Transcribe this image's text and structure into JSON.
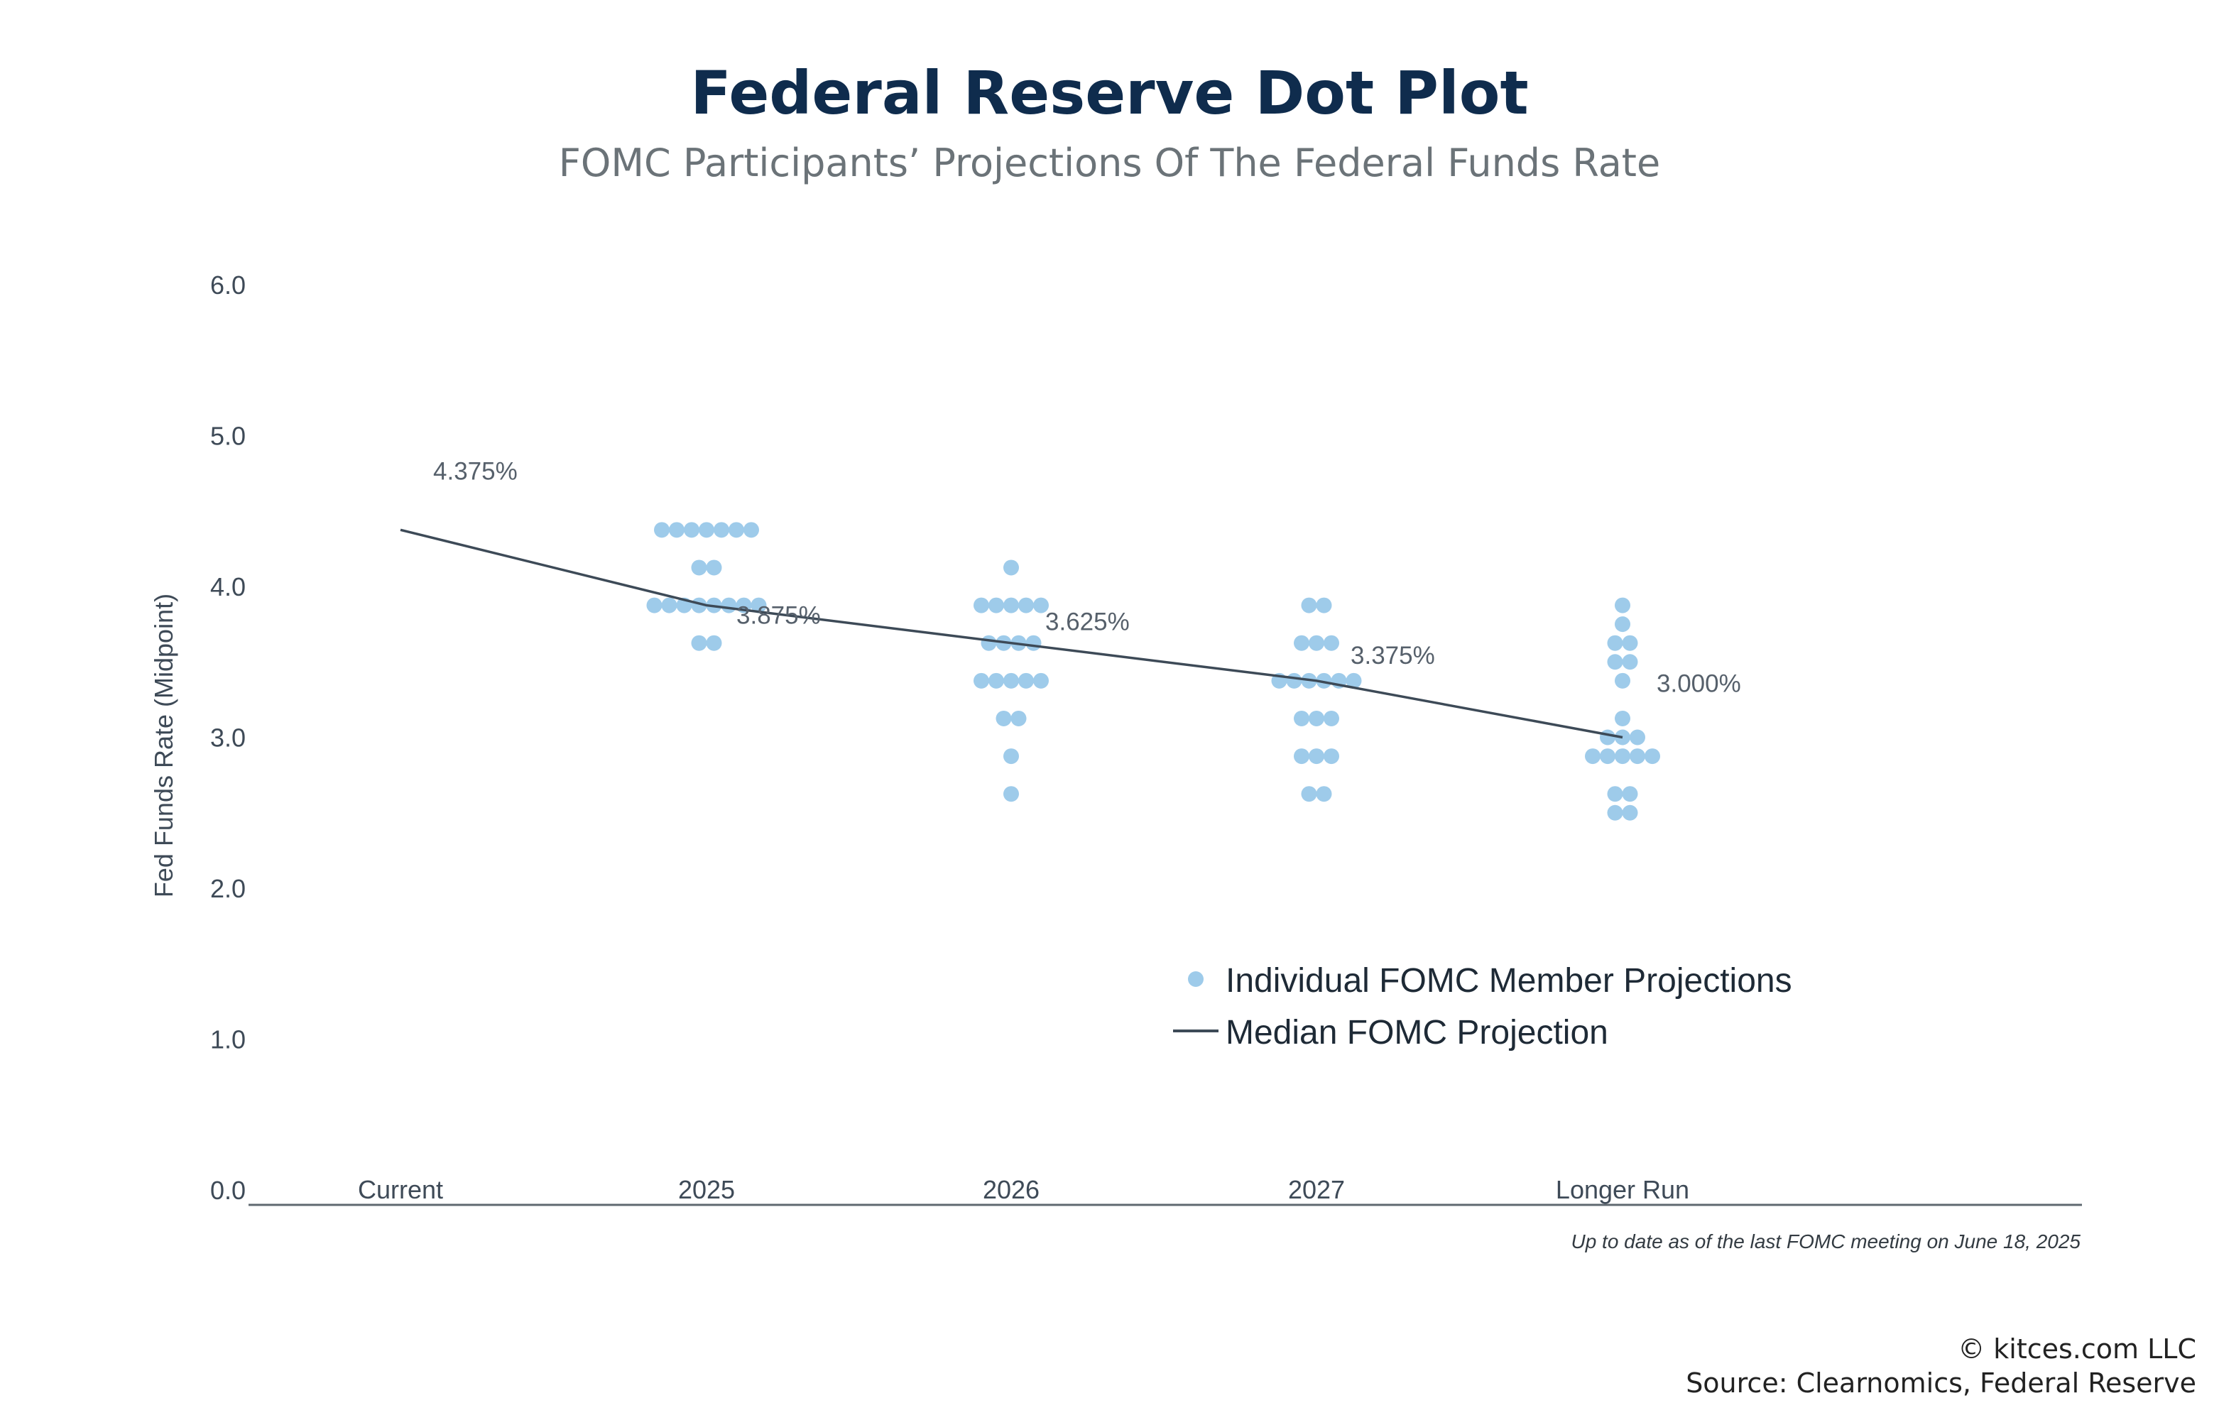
{
  "title": "Federal Reserve Dot Plot",
  "subtitle": "FOMC Participants’ Projections Of The Federal Funds Rate",
  "note": "Up to date as of the last FOMC meeting on June 18, 2025",
  "copyright": "© kitces.com LLC",
  "source": "Source: Clearnomics, Federal Reserve",
  "colors": {
    "dot": "#9ecbea",
    "line": "#3d4a57",
    "axis": "#5f6870"
  },
  "chart_data": {
    "type": "scatter",
    "title": "Federal Reserve Dot Plot",
    "subtitle": "FOMC Participants’ Projections Of The Federal Funds Rate",
    "ylabel": "Fed Funds Rate (Midpoint)",
    "xlabel": "",
    "ylim": [
      0,
      6
    ],
    "yticks": [
      "0.0",
      "1.0",
      "2.0",
      "3.0",
      "4.0",
      "5.0",
      "6.0"
    ],
    "categories": [
      "Current",
      "2025",
      "2026",
      "2027",
      "Longer Run"
    ],
    "grid": false,
    "legend": {
      "position": "lower-right",
      "entries": [
        "Individual FOMC Member Projections",
        "Median FOMC Projection"
      ]
    },
    "series": [
      {
        "name": "Individual FOMC Member Projections",
        "kind": "dots",
        "points": {
          "2025": [
            {
              "rate": 4.375,
              "count": 7
            },
            {
              "rate": 4.125,
              "count": 2
            },
            {
              "rate": 3.875,
              "count": 8
            },
            {
              "rate": 3.625,
              "count": 2
            }
          ],
          "2026": [
            {
              "rate": 4.125,
              "count": 1
            },
            {
              "rate": 3.875,
              "count": 5
            },
            {
              "rate": 3.625,
              "count": 4
            },
            {
              "rate": 3.375,
              "count": 5
            },
            {
              "rate": 3.125,
              "count": 2
            },
            {
              "rate": 2.875,
              "count": 1
            },
            {
              "rate": 2.625,
              "count": 1
            }
          ],
          "2027": [
            {
              "rate": 3.875,
              "count": 2
            },
            {
              "rate": 3.625,
              "count": 3
            },
            {
              "rate": 3.375,
              "count": 6
            },
            {
              "rate": 3.125,
              "count": 3
            },
            {
              "rate": 2.875,
              "count": 3
            },
            {
              "rate": 2.625,
              "count": 2
            }
          ],
          "Longer Run": [
            {
              "rate": 3.875,
              "count": 1
            },
            {
              "rate": 3.75,
              "count": 1
            },
            {
              "rate": 3.625,
              "count": 2
            },
            {
              "rate": 3.5,
              "count": 2
            },
            {
              "rate": 3.375,
              "count": 1
            },
            {
              "rate": 3.125,
              "count": 1
            },
            {
              "rate": 3.0,
              "count": 3
            },
            {
              "rate": 2.875,
              "count": 5
            },
            {
              "rate": 2.625,
              "count": 2
            },
            {
              "rate": 2.5,
              "count": 2
            }
          ]
        }
      },
      {
        "name": "Median FOMC Projection",
        "kind": "line",
        "x": [
          "Current",
          "2025",
          "2026",
          "2027",
          "Longer Run"
        ],
        "values": [
          4.375,
          3.875,
          3.625,
          3.375,
          3.0
        ],
        "labels": [
          "4.375%",
          "3.875%",
          "3.625%",
          "3.375%",
          "3.000%"
        ]
      }
    ]
  }
}
